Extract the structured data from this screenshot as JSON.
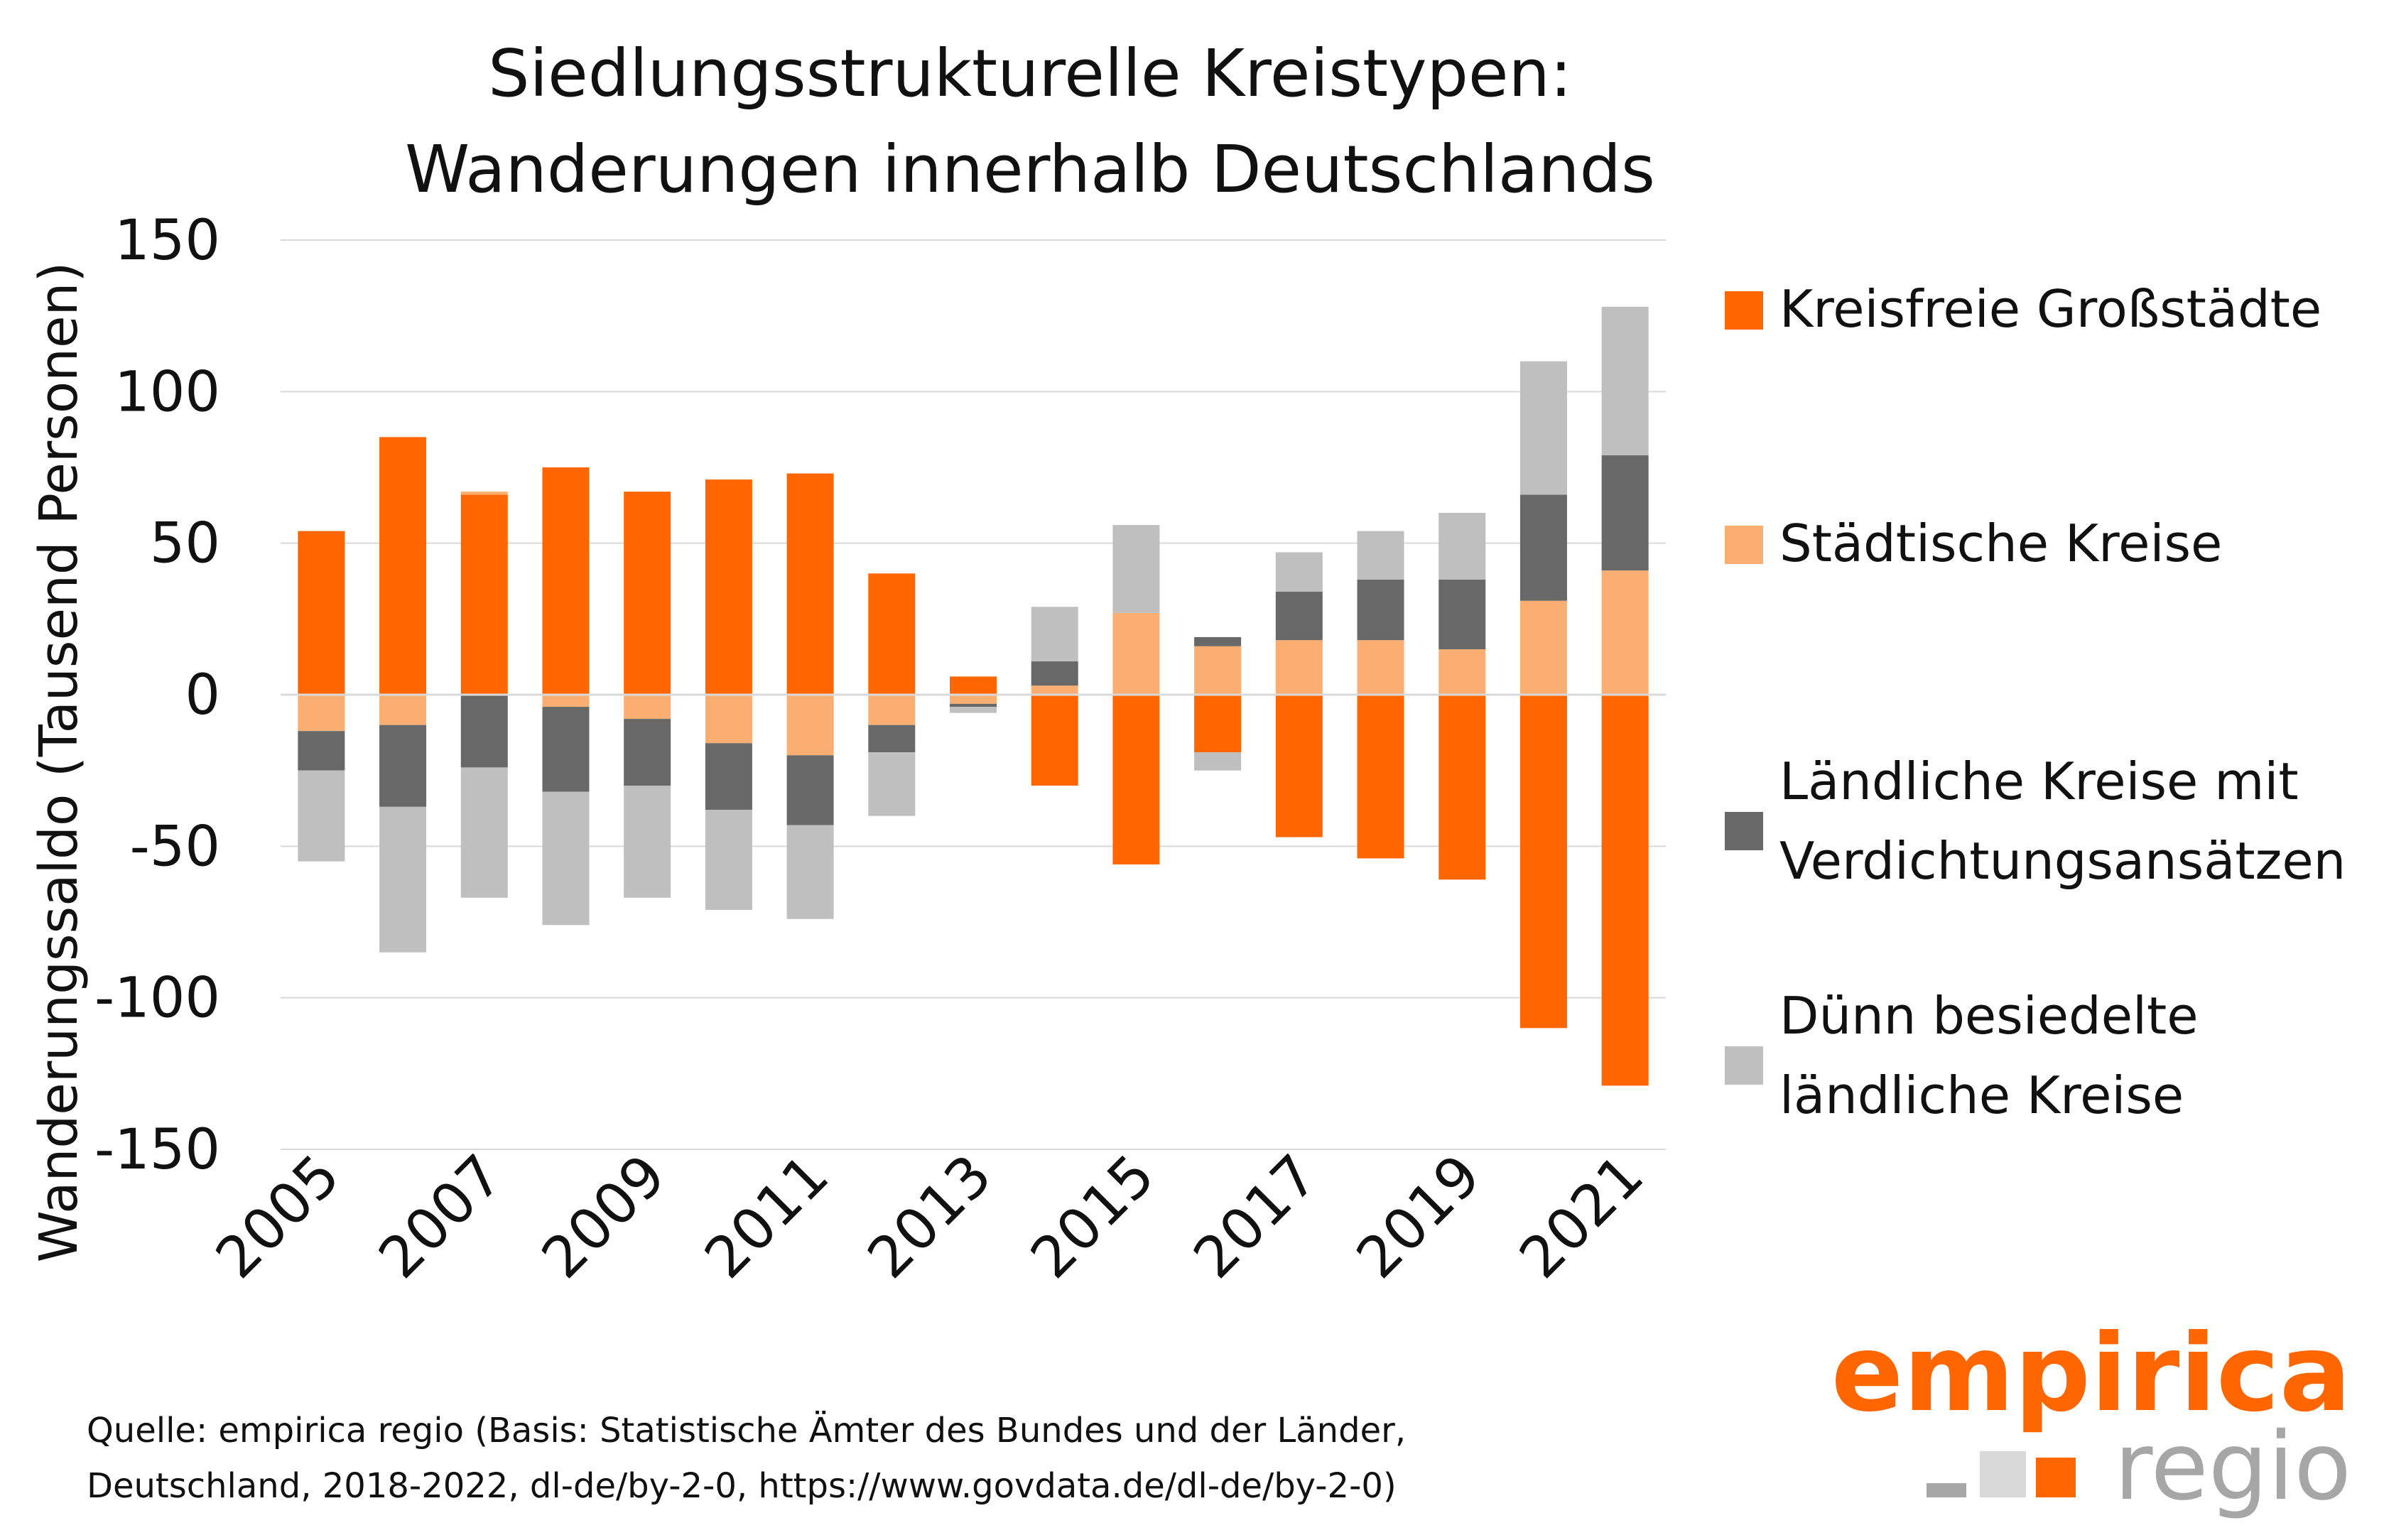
{
  "chart_data": {
    "type": "bar",
    "stacked": true,
    "title": [
      "Siedlungsstrukturelle Kreistypen:",
      "Wanderungen innerhalb Deutschlands"
    ],
    "ylabel": "Wanderungssaldo (Tausend Personen)",
    "xlabel": "",
    "ylim": [
      -150,
      150
    ],
    "yticks": [
      150,
      100,
      50,
      0,
      -50,
      -100,
      -150
    ],
    "ytick_labels": [
      "150",
      "100",
      "50",
      "0",
      "-50",
      "-100",
      "-150"
    ],
    "grid": true,
    "legend_position": "right",
    "categories": [
      "2005",
      "2006",
      "2007",
      "2008",
      "2009",
      "2010",
      "2011",
      "2012",
      "2013",
      "2014",
      "2015",
      "2016",
      "2017",
      "2018",
      "2019",
      "2020",
      "2021"
    ],
    "xtick_labels": [
      "2005",
      "",
      "2007",
      "",
      "2009",
      "",
      "2011",
      "",
      "2013",
      "",
      "2015",
      "",
      "2017",
      "",
      "2019",
      "",
      "2021"
    ],
    "series": [
      {
        "name": "Kreisfreie Großstädte",
        "color": "#ff6600",
        "values": [
          54,
          85,
          66,
          75,
          67,
          71,
          73,
          40,
          6,
          -30,
          -56,
          -19,
          -47,
          -54,
          -61,
          -110,
          -129
        ]
      },
      {
        "name": "Städtische Kreise",
        "color": "#fbae72",
        "values": [
          -12,
          -10,
          1,
          -4,
          -8,
          -16,
          -20,
          -10,
          -3,
          3,
          27,
          16,
          18,
          18,
          15,
          31,
          41
        ]
      },
      {
        "name": "Ländliche Kreise mit Verdichtungsansätzen",
        "color": "#686868",
        "values": [
          -13,
          -27,
          -24,
          -28,
          -22,
          -22,
          -23,
          -9,
          -1,
          8,
          0,
          3,
          16,
          20,
          23,
          35,
          38
        ]
      },
      {
        "name": "Dünn besiedelte ländliche Kreise",
        "color": "#bfbfbf",
        "values": [
          -30,
          -48,
          -43,
          -44,
          -37,
          -33,
          -31,
          -21,
          -2,
          18,
          29,
          -6,
          13,
          16,
          22,
          44,
          49
        ]
      }
    ],
    "legend_labels": [
      [
        "Kreisfreie Großstädte"
      ],
      [
        "Städtische Kreise"
      ],
      [
        "Ländliche Kreise mit",
        "Verdichtungsansätzen"
      ],
      [
        "Dünn besiedelte",
        "ländliche Kreise"
      ]
    ]
  },
  "source": {
    "line1": "Quelle: empirica regio (Basis: Statistische Ämter des Bundes und der Länder,",
    "line2": "Deutschland, 2018-2022, dl-de/by-2-0, https://www.govdata.de/dl-de/by-2-0)"
  },
  "logo": {
    "line1": "empirica",
    "line2": "regio",
    "colors": {
      "orange": "#ff6600",
      "grey": "#a6a6a6",
      "light_grey": "#d9d9d9"
    }
  }
}
